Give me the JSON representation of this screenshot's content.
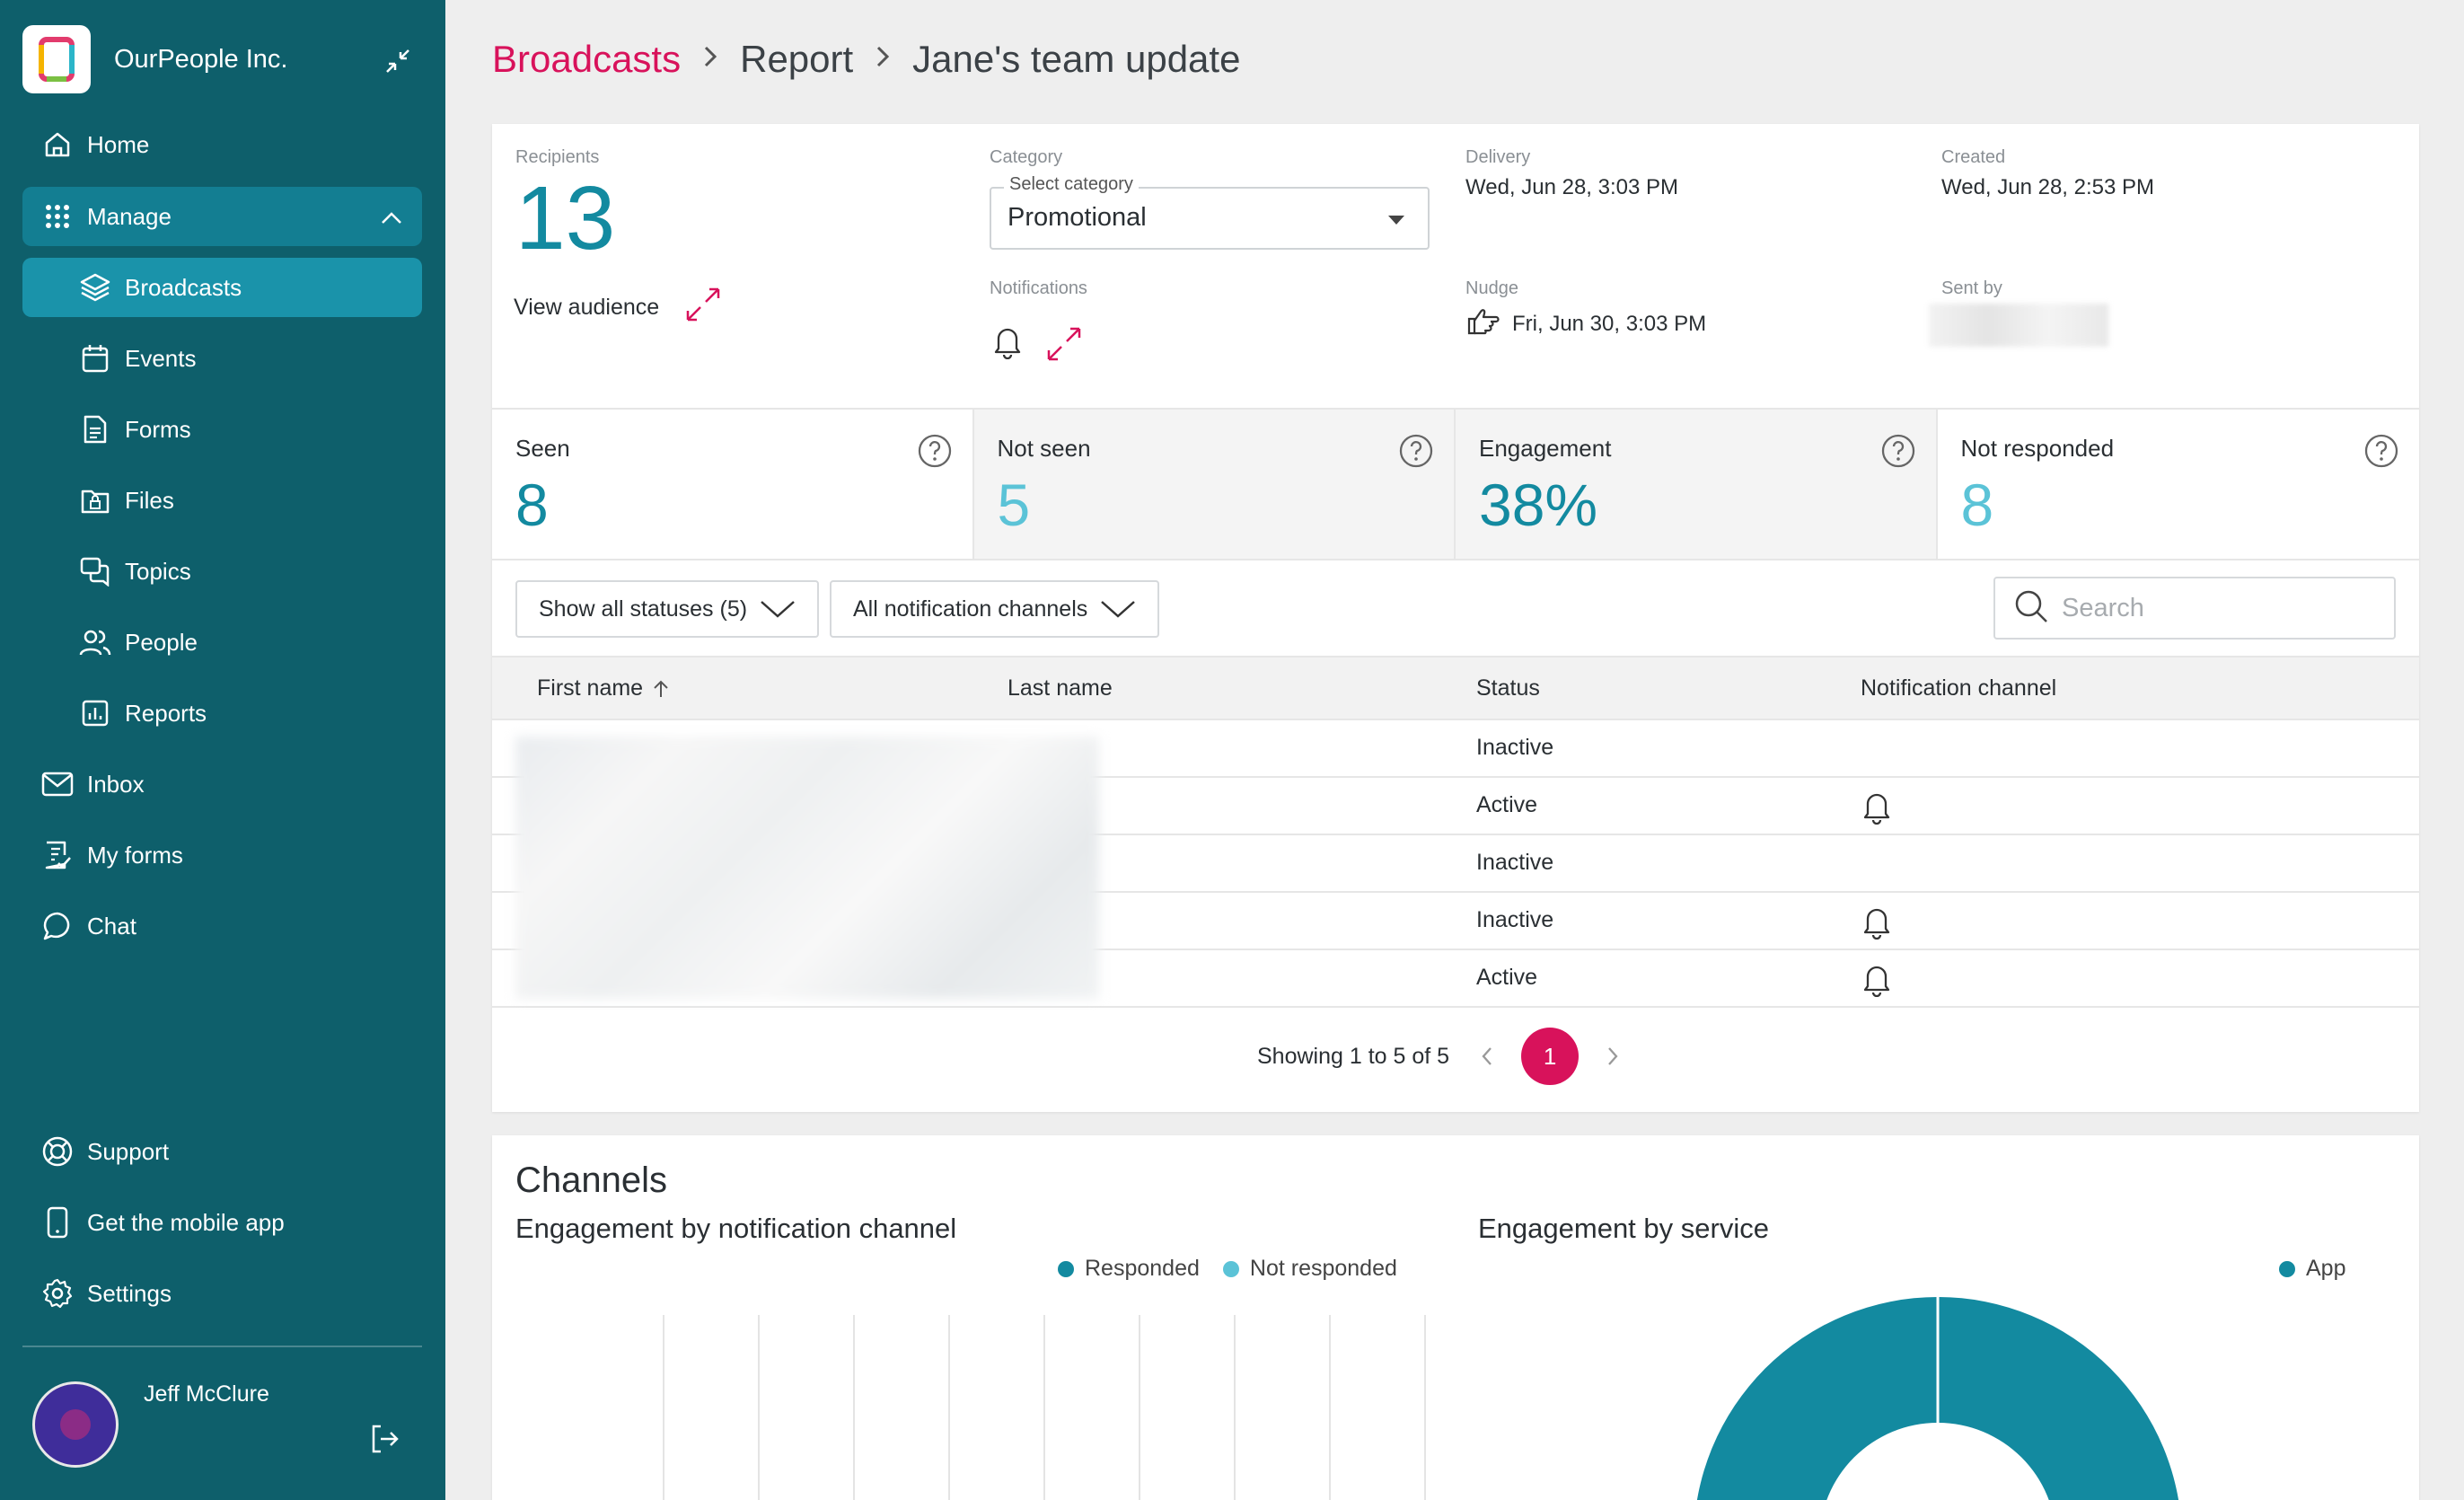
{
  "app": {
    "org_name": "OurPeople Inc."
  },
  "sidebar": {
    "items": [
      {
        "label": "Home",
        "icon": "home-icon"
      },
      {
        "label": "Manage",
        "icon": "grid-icon"
      },
      {
        "label": "Broadcasts",
        "icon": "layers-icon"
      },
      {
        "label": "Events",
        "icon": "calendar-icon"
      },
      {
        "label": "Forms",
        "icon": "document-icon"
      },
      {
        "label": "Files",
        "icon": "folder-lock-icon"
      },
      {
        "label": "Topics",
        "icon": "chat-bubbles-icon"
      },
      {
        "label": "People",
        "icon": "people-icon"
      },
      {
        "label": "Reports",
        "icon": "bar-chart-icon"
      },
      {
        "label": "Inbox",
        "icon": "mail-icon"
      },
      {
        "label": "My forms",
        "icon": "form-check-icon"
      },
      {
        "label": "Chat",
        "icon": "chat-icon"
      }
    ],
    "bottom_items": [
      {
        "label": "Support",
        "icon": "lifebuoy-icon"
      },
      {
        "label": "Get the mobile app",
        "icon": "phone-icon"
      },
      {
        "label": "Settings",
        "icon": "gear-icon"
      }
    ],
    "user_name": "Jeff McClure"
  },
  "breadcrumb": {
    "root": "Broadcasts",
    "middle": "Report",
    "current": "Jane's team update"
  },
  "summary": {
    "recipients_label": "Recipients",
    "recipients_value": "13",
    "view_audience": "View audience",
    "category_label": "Category",
    "select_legend": "Select category",
    "category_value": "Promotional",
    "notifications_label": "Notifications",
    "delivery_label": "Delivery",
    "delivery_value": "Wed, Jun 28, 3:03 PM",
    "nudge_label": "Nudge",
    "nudge_value": "Fri, Jun 30, 3:03 PM",
    "created_label": "Created",
    "created_value": "Wed, Jun 28, 2:53 PM",
    "sent_by_label": "Sent by"
  },
  "stats": [
    {
      "label": "Seen",
      "value": "8"
    },
    {
      "label": "Not seen",
      "value": "5"
    },
    {
      "label": "Engagement",
      "value": "38%"
    },
    {
      "label": "Not responded",
      "value": "8"
    }
  ],
  "filters": {
    "status": "Show all statuses (5)",
    "channel": "All notification channels",
    "search_placeholder": "Search"
  },
  "table": {
    "headers": [
      "First name",
      "Last name",
      "Status",
      "Notification channel"
    ],
    "rows": [
      {
        "status": "Inactive",
        "bell": false
      },
      {
        "status": "Active",
        "bell": true
      },
      {
        "status": "Inactive",
        "bell": false
      },
      {
        "status": "Inactive",
        "bell": true
      },
      {
        "status": "Active",
        "bell": true
      }
    ]
  },
  "pagination": {
    "summary": "Showing 1 to 5 of 5",
    "current_page": "1"
  },
  "channels": {
    "title": "Channels",
    "left_subtitle": "Engagement by notification channel",
    "right_subtitle": "Engagement by service",
    "legend_left": [
      "Responded",
      "Not responded"
    ],
    "legend_right": [
      "App"
    ]
  },
  "colors": {
    "sidebar": "#0e5f6b",
    "accent": "#d8125b",
    "teal_dark": "#138aa0",
    "teal_light": "#5bc3d7"
  }
}
